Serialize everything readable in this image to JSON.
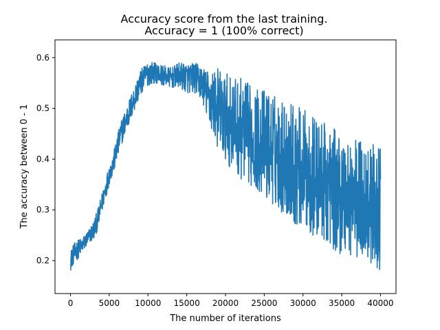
{
  "chart_data": {
    "type": "line",
    "title": [
      "Accuracy score from the last training.",
      "Accuracy = 1 (100% correct)"
    ],
    "xlabel": "The number of iterations",
    "ylabel": "The accuracy between 0 - 1",
    "xlim": [
      -2000,
      42000
    ],
    "ylim": [
      0.135,
      0.635
    ],
    "xticks": [
      0,
      5000,
      10000,
      15000,
      20000,
      25000,
      30000,
      35000,
      40000
    ],
    "xtick_labels": [
      "0",
      "5000",
      "10000",
      "15000",
      "20000",
      "25000",
      "30000",
      "35000",
      "40000"
    ],
    "yticks": [
      0.2,
      0.3,
      0.4,
      0.5,
      0.6
    ],
    "ytick_labels": [
      "0.2",
      "0.3",
      "0.4",
      "0.5",
      "0.6"
    ],
    "grid": false,
    "legend": null,
    "series": [
      {
        "color": "#1f77b4",
        "x": [
          0,
          300,
          800,
          1500,
          2000,
          2500,
          3000,
          3500,
          4000,
          4500,
          5000,
          5500,
          6000,
          6500,
          7000,
          7500,
          8000,
          8500,
          9000,
          9500,
          10000,
          11000,
          12000,
          13000,
          14000,
          15000,
          16000,
          17000,
          17500,
          18000,
          19000,
          19500,
          20000,
          21000,
          22000,
          23000,
          24000,
          25000,
          26000,
          27000,
          28000,
          29000,
          30000,
          31000,
          32000,
          33000,
          34000,
          35000,
          36000,
          37000,
          38000,
          39000,
          40000
        ],
        "y": [
          0.2,
          0.21,
          0.22,
          0.23,
          0.24,
          0.25,
          0.26,
          0.28,
          0.31,
          0.34,
          0.37,
          0.39,
          0.42,
          0.45,
          0.47,
          0.49,
          0.51,
          0.53,
          0.55,
          0.56,
          0.57,
          0.57,
          0.565,
          0.56,
          0.565,
          0.56,
          0.56,
          0.55,
          0.53,
          0.52,
          0.5,
          0.49,
          0.48,
          0.47,
          0.46,
          0.45,
          0.44,
          0.43,
          0.42,
          0.41,
          0.4,
          0.39,
          0.38,
          0.37,
          0.36,
          0.35,
          0.34,
          0.33,
          0.33,
          0.32,
          0.32,
          0.31,
          0.3
        ],
        "noise_envelope_y": [
          0.02,
          0.02,
          0.02,
          0.015,
          0.015,
          0.015,
          0.02,
          0.02,
          0.02,
          0.02,
          0.02,
          0.02,
          0.025,
          0.025,
          0.025,
          0.025,
          0.025,
          0.025,
          0.025,
          0.025,
          0.025,
          0.02,
          0.02,
          0.02,
          0.025,
          0.03,
          0.03,
          0.035,
          0.045,
          0.06,
          0.08,
          0.09,
          0.09,
          0.09,
          0.1,
          0.1,
          0.1,
          0.11,
          0.11,
          0.11,
          0.12,
          0.12,
          0.12,
          0.12,
          0.12,
          0.12,
          0.12,
          0.12,
          0.12,
          0.12,
          0.12,
          0.12,
          0.12
        ]
      }
    ]
  }
}
